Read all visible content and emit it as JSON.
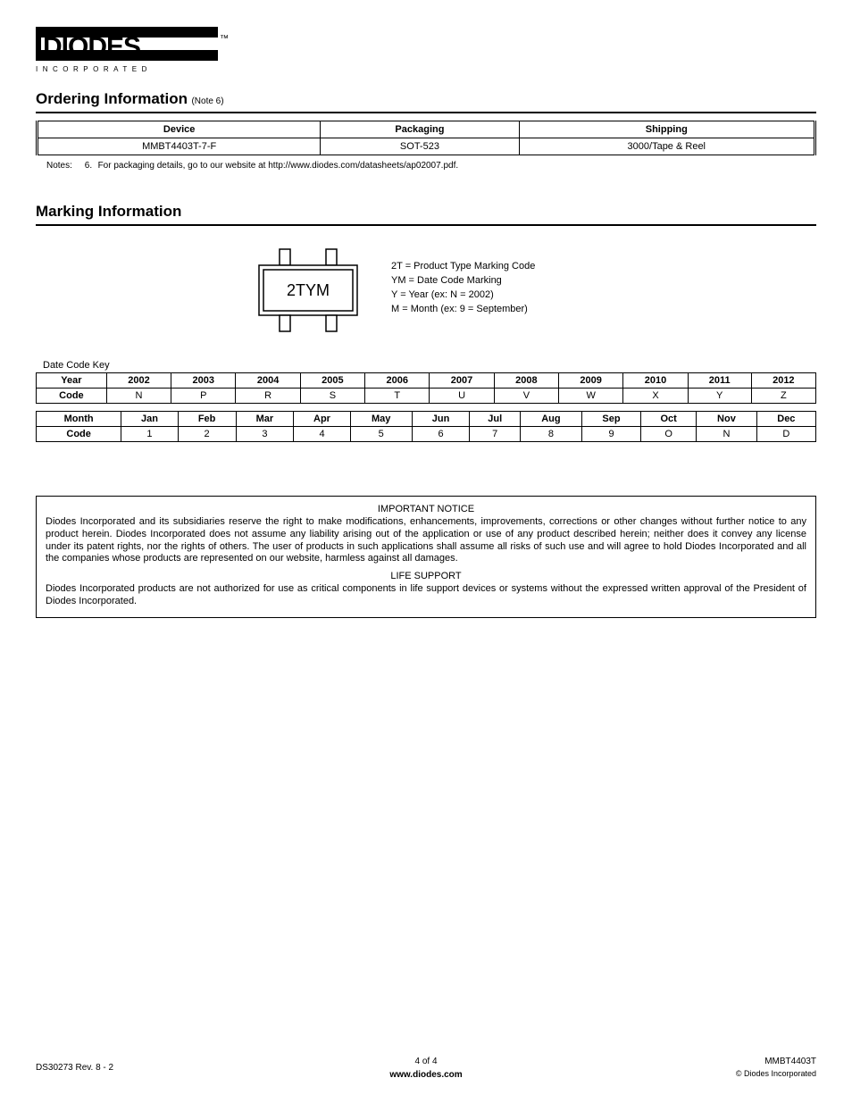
{
  "logo": {
    "main": "DIODES",
    "tagline": "I N C O R P O R A T E D",
    "tm": "™",
    "bar_color": "#000000",
    "text_color": "#ffffff"
  },
  "ordering": {
    "title": "Ordering Information",
    "note_suffix": "(Note 6)",
    "headers": [
      "Device",
      "Packaging",
      "Shipping"
    ],
    "row": [
      "MMBT4403T-7-F",
      "SOT-523",
      "3000/Tape & Reel"
    ],
    "notes_label": "Notes:",
    "note_num": "6.",
    "note_text": "For packaging details, go to our website at http://www.diodes.com/datasheets/ap02007.pdf."
  },
  "marking": {
    "title": "Marking Information",
    "chip_label": "2TYM",
    "desc1": "2T = Product Type Marking Code",
    "desc2": "YM = Date Code Marking",
    "desc3": "Y = Year (ex: N = 2002)",
    "desc4": "M = Month (ex: 9 = September)",
    "diagram": {
      "body_w": 110,
      "body_h": 56,
      "pin_w": 12,
      "pin_h": 18,
      "pin_gap": 52,
      "stroke": "#000000",
      "fill": "#ffffff",
      "label_fontsize": 18
    }
  },
  "datecode": {
    "label": "Date Code Key",
    "year": {
      "row1_label": "Year",
      "row1": [
        "2002",
        "2003",
        "2004",
        "2005",
        "2006",
        "2007",
        "2008",
        "2009",
        "2010",
        "2011",
        "2012"
      ],
      "row2_label": "Code",
      "row2": [
        "N",
        "P",
        "R",
        "S",
        "T",
        "U",
        "V",
        "W",
        "X",
        "Y",
        "Z"
      ]
    },
    "month": {
      "row1_label": "Month",
      "row1": [
        "Jan",
        "Feb",
        "Mar",
        "Apr",
        "May",
        "Jun",
        "Jul",
        "Aug",
        "Sep",
        "Oct",
        "Nov",
        "Dec"
      ],
      "row2_label": "Code",
      "row2": [
        "1",
        "2",
        "3",
        "4",
        "5",
        "6",
        "7",
        "8",
        "9",
        "O",
        "N",
        "D"
      ]
    }
  },
  "notice": {
    "title": "IMPORTANT NOTICE",
    "body": "Diodes Incorporated and its subsidiaries reserve the right to make modifications, enhancements, improvements, corrections or other changes without further notice to any product herein. Diodes Incorporated does not assume any liability arising out of the application or use of any product described herein; neither does it convey any license under its patent rights, nor the rights of others. The user of products in such applications shall assume all risks of such use and will agree to hold Diodes Incorporated and all the companies whose products are represented on our website, harmless against all damages.",
    "life_title": "LIFE SUPPORT",
    "life_body": "Diodes Incorporated products are not authorized for use as critical components in life support devices or systems without the expressed written approval of the President of Diodes Incorporated."
  },
  "footer": {
    "left": "DS30273 Rev. 8 - 2",
    "page": "4 of 4",
    "url": "www.diodes.com",
    "right1": "MMBT4403T",
    "right2": "© Diodes Incorporated"
  }
}
